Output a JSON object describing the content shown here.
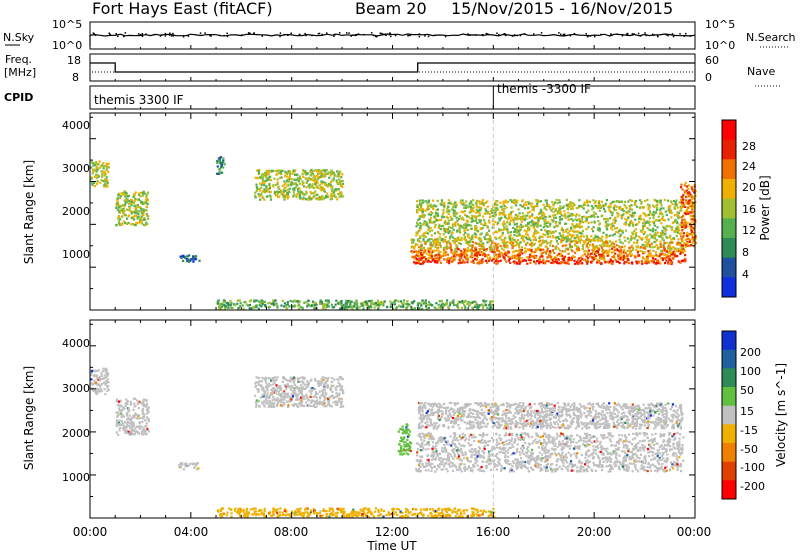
{
  "header": {
    "radar": "Fort Hays East (fitACF)",
    "beam": "Beam 20",
    "date_range": "15/Nov/2015 - 16/Nov/2015"
  },
  "noise_panel": {
    "left_label": "N.Sky",
    "right_label": "N.Search",
    "left_ticks": [
      "10^5",
      "10^0"
    ],
    "right_ticks": [
      "10^5",
      "10^0"
    ]
  },
  "freq_panel": {
    "left_label_1": "Freq.",
    "left_label_2": "[MHz]",
    "right_label": "Nave",
    "left_ticks": [
      "18",
      "8"
    ],
    "right_ticks": [
      "60",
      "0"
    ]
  },
  "cpid_panel": {
    "label": "CPID",
    "programs": [
      "themis 3300 IF",
      "themis -3300 IF"
    ],
    "program_change_hour": 16
  },
  "chart_data": [
    {
      "type": "heatmap",
      "name": "power",
      "ylabel": "Slant Range [km]",
      "y_ticks": [
        "1000",
        "2000",
        "3000",
        "4000"
      ],
      "ylim": [
        0,
        4600
      ],
      "xlim_hours": [
        0,
        24
      ],
      "colorbar_label": "Power [dB]",
      "colorbar_ticks": [
        "4",
        "8",
        "12",
        "16",
        "20",
        "24",
        "28"
      ],
      "colorbar_colors": [
        "#1030e0",
        "#2050a0",
        "#2e8b57",
        "#55b050",
        "#a0c030",
        "#f0b000",
        "#f07000",
        "#e82000",
        "#ff0000"
      ],
      "scatter_regions": [
        {
          "t": [
            0.0,
            0.7
          ],
          "r": [
            2900,
            3500
          ],
          "level": 4
        },
        {
          "t": [
            1.0,
            2.3
          ],
          "r": [
            2000,
            2800
          ],
          "level": 4
        },
        {
          "t": [
            3.5,
            4.3
          ],
          "r": [
            1150,
            1300
          ],
          "level": 1
        },
        {
          "t": [
            5.0,
            5.3
          ],
          "r": [
            3200,
            3600
          ],
          "level": 2
        },
        {
          "t": [
            6.5,
            10.0
          ],
          "r": [
            2600,
            3300
          ],
          "level": 4
        },
        {
          "t": [
            12.7,
            23.6
          ],
          "r": [
            1100,
            1700
          ],
          "level": 7
        },
        {
          "t": [
            12.9,
            23.5
          ],
          "r": [
            1700,
            2600
          ],
          "level": 4
        },
        {
          "t": [
            23.4,
            24.0
          ],
          "r": [
            1500,
            3000
          ],
          "level": 6
        },
        {
          "t": [
            5.0,
            16.0
          ],
          "r": [
            50,
            250
          ],
          "level": 3
        }
      ]
    },
    {
      "type": "heatmap",
      "name": "velocity",
      "ylabel": "Slant Range [km]",
      "y_ticks": [
        "1000",
        "2000",
        "3000",
        "4000"
      ],
      "ylim": [
        0,
        4600
      ],
      "xlim_hours": [
        0,
        24
      ],
      "colorbar_label": "Velocity [m s^-1]",
      "colorbar_ticks": [
        "200",
        "100",
        "50",
        "15",
        "-15",
        "-50",
        "-100",
        "-200"
      ],
      "colorbar_colors": [
        "#1030d0",
        "#2060a0",
        "#2e8b57",
        "#60c040",
        "#c0c0c0",
        "#f0b000",
        "#f08000",
        "#e04000",
        "#ff0000"
      ],
      "scatter_regions": [
        {
          "t": [
            0.0,
            0.7
          ],
          "r": [
            2900,
            3500
          ],
          "level": 4
        },
        {
          "t": [
            1.0,
            2.3
          ],
          "r": [
            1950,
            2800
          ],
          "level": 4
        },
        {
          "t": [
            3.5,
            4.3
          ],
          "r": [
            1150,
            1300
          ],
          "level": 4
        },
        {
          "t": [
            6.5,
            10.0
          ],
          "r": [
            2600,
            3300
          ],
          "level": 4
        },
        {
          "t": [
            12.2,
            12.7
          ],
          "r": [
            1500,
            2200
          ],
          "level": 3
        },
        {
          "t": [
            12.9,
            23.5
          ],
          "r": [
            1100,
            2000
          ],
          "level": 4
        },
        {
          "t": [
            13.0,
            23.5
          ],
          "r": [
            2100,
            2700
          ],
          "level": 4
        },
        {
          "t": [
            5.0,
            16.0
          ],
          "r": [
            50,
            250
          ],
          "level": 5
        }
      ]
    }
  ],
  "x_axis": {
    "tick_labels": [
      "00:00",
      "04:00",
      "08:00",
      "12:00",
      "16:00",
      "20:00",
      "00:00"
    ],
    "label": "Time UT"
  }
}
